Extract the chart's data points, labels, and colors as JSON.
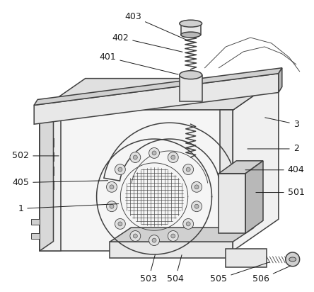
{
  "background_color": "#ffffff",
  "figure_width": 4.44,
  "figure_height": 4.12,
  "dpi": 100,
  "line_color": "#404040",
  "label_color": "#1a1a1a",
  "label_fontsize": 9,
  "light_fill": "#e8e8e8",
  "mid_fill": "#d0d0d0",
  "dark_fill": "#b8b8b8"
}
